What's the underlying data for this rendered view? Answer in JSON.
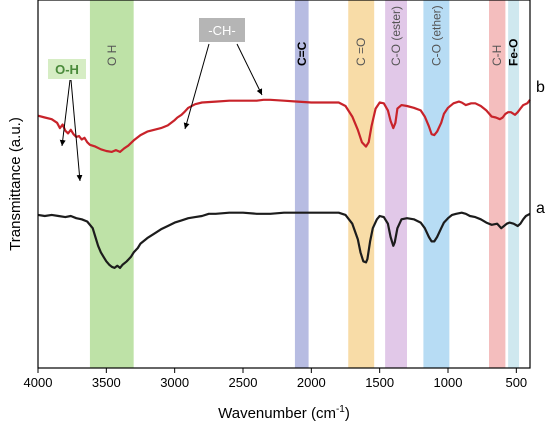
{
  "chart_data": {
    "type": "line",
    "xlabel": "Wavenumber (cm",
    "xlabel_sup": "-1",
    "xlabel_end": ")",
    "ylabel": "Transmittance (a.u.)",
    "xlim": [
      4000,
      400
    ],
    "x_reversed": true,
    "x_ticks": [
      "4000",
      "3500",
      "3000",
      "2500",
      "2000",
      "1500",
      "1000",
      "500"
    ],
    "y_ticks_shown": false,
    "series": [
      {
        "name": "b",
        "color": "#c8232a",
        "points": [
          [
            4000,
            0.56
          ],
          [
            3950,
            0.58
          ],
          [
            3900,
            0.6
          ],
          [
            3860,
            0.64
          ],
          [
            3840,
            0.7
          ],
          [
            3820,
            0.66
          ],
          [
            3800,
            0.73
          ],
          [
            3780,
            0.76
          ],
          [
            3760,
            0.72
          ],
          [
            3740,
            0.77
          ],
          [
            3720,
            0.8
          ],
          [
            3700,
            0.79
          ],
          [
            3680,
            0.83
          ],
          [
            3660,
            0.81
          ],
          [
            3640,
            0.86
          ],
          [
            3620,
            0.89
          ],
          [
            3580,
            0.91
          ],
          [
            3540,
            0.94
          ],
          [
            3500,
            0.96
          ],
          [
            3460,
            0.97
          ],
          [
            3430,
            0.95
          ],
          [
            3400,
            0.97
          ],
          [
            3370,
            0.93
          ],
          [
            3340,
            0.9
          ],
          [
            3300,
            0.84
          ],
          [
            3250,
            0.78
          ],
          [
            3200,
            0.74
          ],
          [
            3150,
            0.72
          ],
          [
            3100,
            0.7
          ],
          [
            3050,
            0.67
          ],
          [
            3000,
            0.61
          ],
          [
            2980,
            0.58
          ],
          [
            2950,
            0.55
          ],
          [
            2930,
            0.52
          ],
          [
            2900,
            0.47
          ],
          [
            2850,
            0.43
          ],
          [
            2800,
            0.41
          ],
          [
            2700,
            0.4
          ],
          [
            2600,
            0.39
          ],
          [
            2500,
            0.39
          ],
          [
            2400,
            0.39
          ],
          [
            2350,
            0.38
          ],
          [
            2300,
            0.38
          ],
          [
            2200,
            0.39
          ],
          [
            2100,
            0.4
          ],
          [
            2000,
            0.41
          ],
          [
            1900,
            0.41
          ],
          [
            1800,
            0.41
          ],
          [
            1750,
            0.45
          ],
          [
            1700,
            0.57
          ],
          [
            1660,
            0.72
          ],
          [
            1630,
            0.86
          ],
          [
            1600,
            0.91
          ],
          [
            1580,
            0.86
          ],
          [
            1560,
            0.68
          ],
          [
            1530,
            0.48
          ],
          [
            1500,
            0.41
          ],
          [
            1470,
            0.42
          ],
          [
            1440,
            0.5
          ],
          [
            1420,
            0.62
          ],
          [
            1400,
            0.7
          ],
          [
            1385,
            0.64
          ],
          [
            1370,
            0.48
          ],
          [
            1340,
            0.44
          ],
          [
            1300,
            0.45
          ],
          [
            1250,
            0.47
          ],
          [
            1200,
            0.5
          ],
          [
            1170,
            0.57
          ],
          [
            1140,
            0.68
          ],
          [
            1120,
            0.77
          ],
          [
            1100,
            0.78
          ],
          [
            1080,
            0.74
          ],
          [
            1050,
            0.64
          ],
          [
            1030,
            0.54
          ],
          [
            1000,
            0.47
          ],
          [
            960,
            0.42
          ],
          [
            920,
            0.4
          ],
          [
            900,
            0.41
          ],
          [
            870,
            0.44
          ],
          [
            830,
            0.42
          ],
          [
            800,
            0.42
          ],
          [
            760,
            0.45
          ],
          [
            720,
            0.5
          ],
          [
            680,
            0.57
          ],
          [
            650,
            0.58
          ],
          [
            620,
            0.6
          ],
          [
            600,
            0.58
          ],
          [
            580,
            0.54
          ],
          [
            560,
            0.52
          ],
          [
            540,
            0.52
          ],
          [
            510,
            0.55
          ],
          [
            490,
            0.52
          ],
          [
            470,
            0.48
          ],
          [
            450,
            0.44
          ],
          [
            420,
            0.42
          ],
          [
            400,
            0.38
          ]
        ]
      },
      {
        "name": "a",
        "color": "#1c1c1c",
        "points": [
          [
            4000,
            0.48
          ],
          [
            3950,
            0.49
          ],
          [
            3900,
            0.48
          ],
          [
            3850,
            0.49
          ],
          [
            3800,
            0.5
          ],
          [
            3760,
            0.49
          ],
          [
            3720,
            0.51
          ],
          [
            3680,
            0.52
          ],
          [
            3640,
            0.54
          ],
          [
            3600,
            0.6
          ],
          [
            3580,
            0.68
          ],
          [
            3560,
            0.76
          ],
          [
            3540,
            0.82
          ],
          [
            3520,
            0.86
          ],
          [
            3500,
            0.9
          ],
          [
            3480,
            0.93
          ],
          [
            3460,
            0.95
          ],
          [
            3440,
            0.96
          ],
          [
            3420,
            0.94
          ],
          [
            3400,
            0.96
          ],
          [
            3380,
            0.93
          ],
          [
            3350,
            0.9
          ],
          [
            3320,
            0.86
          ],
          [
            3300,
            0.82
          ],
          [
            3270,
            0.78
          ],
          [
            3250,
            0.74
          ],
          [
            3200,
            0.69
          ],
          [
            3150,
            0.65
          ],
          [
            3100,
            0.61
          ],
          [
            3050,
            0.58
          ],
          [
            3000,
            0.55
          ],
          [
            2950,
            0.53
          ],
          [
            2900,
            0.51
          ],
          [
            2850,
            0.5
          ],
          [
            2800,
            0.49
          ],
          [
            2750,
            0.47
          ],
          [
            2700,
            0.47
          ],
          [
            2600,
            0.46
          ],
          [
            2500,
            0.46
          ],
          [
            2400,
            0.47
          ],
          [
            2300,
            0.47
          ],
          [
            2200,
            0.46
          ],
          [
            2100,
            0.46
          ],
          [
            2000,
            0.46
          ],
          [
            1900,
            0.46
          ],
          [
            1800,
            0.46
          ],
          [
            1750,
            0.48
          ],
          [
            1700,
            0.56
          ],
          [
            1660,
            0.7
          ],
          [
            1640,
            0.82
          ],
          [
            1620,
            0.9
          ],
          [
            1600,
            0.91
          ],
          [
            1590,
            0.88
          ],
          [
            1570,
            0.72
          ],
          [
            1550,
            0.6
          ],
          [
            1520,
            0.52
          ],
          [
            1500,
            0.49
          ],
          [
            1470,
            0.5
          ],
          [
            1440,
            0.56
          ],
          [
            1420,
            0.68
          ],
          [
            1400,
            0.76
          ],
          [
            1390,
            0.73
          ],
          [
            1370,
            0.6
          ],
          [
            1340,
            0.52
          ],
          [
            1300,
            0.51
          ],
          [
            1250,
            0.52
          ],
          [
            1200,
            0.55
          ],
          [
            1170,
            0.6
          ],
          [
            1140,
            0.68
          ],
          [
            1120,
            0.72
          ],
          [
            1100,
            0.72
          ],
          [
            1080,
            0.68
          ],
          [
            1050,
            0.6
          ],
          [
            1030,
            0.55
          ],
          [
            1000,
            0.51
          ],
          [
            970,
            0.48
          ],
          [
            940,
            0.47
          ],
          [
            900,
            0.46
          ],
          [
            870,
            0.47
          ],
          [
            840,
            0.49
          ],
          [
            800,
            0.5
          ],
          [
            760,
            0.52
          ],
          [
            720,
            0.55
          ],
          [
            680,
            0.57
          ],
          [
            640,
            0.56
          ],
          [
            610,
            0.6
          ],
          [
            590,
            0.58
          ],
          [
            570,
            0.56
          ],
          [
            550,
            0.55
          ],
          [
            520,
            0.56
          ],
          [
            490,
            0.58
          ],
          [
            470,
            0.56
          ],
          [
            450,
            0.52
          ],
          [
            430,
            0.49
          ],
          [
            400,
            0.47
          ]
        ]
      }
    ],
    "series_labels": [
      "b",
      "a"
    ],
    "bands": [
      {
        "label": "O H",
        "from": 3620,
        "to": 3300,
        "color": "#a8d88a"
      },
      {
        "label": "C=C",
        "from": 2120,
        "to": 2020,
        "color": "#9fa6d8"
      },
      {
        "label": "C =O",
        "from": 1730,
        "to": 1540,
        "color": "#f5d08a"
      },
      {
        "label": "C-O (ester)",
        "from": 1460,
        "to": 1300,
        "color": "#d7b6e0"
      },
      {
        "label": "C-O (ether)",
        "from": 1180,
        "to": 990,
        "color": "#9fd0f0"
      },
      {
        "label": "C-H",
        "from": 700,
        "to": 580,
        "color": "#f0a8a8"
      },
      {
        "label": "Fe-O",
        "from": 560,
        "to": 480,
        "color": "#bfe0ea"
      }
    ],
    "annotations": [
      {
        "label": "O-H",
        "color": "#4a8a3a",
        "bg": "#d6edc4"
      },
      {
        "label": "-CH-",
        "color": "#ffffff",
        "bg": "#b5b5b5"
      }
    ]
  }
}
